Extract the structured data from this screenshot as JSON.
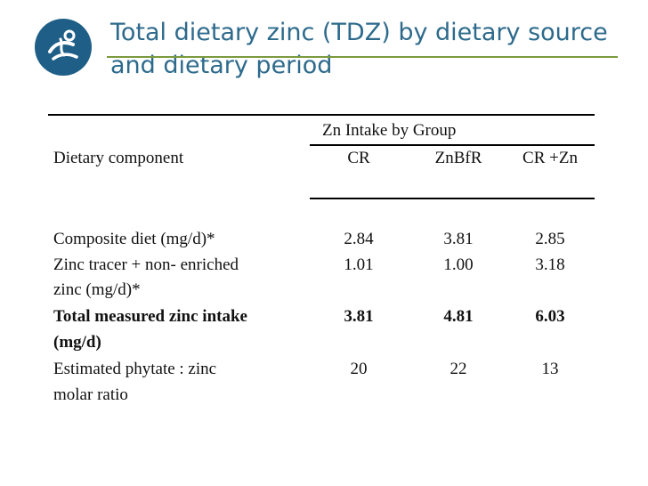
{
  "title": "Total dietary zinc (TDZ) by dietary source and dietary period",
  "logo": {
    "icon": "leaf-figure-logo-icon",
    "color": "#1f5f87"
  },
  "table": {
    "group_header": "Zn Intake by Group",
    "row_header": "Dietary component",
    "columns": [
      "CR",
      "ZnBfR",
      "CR +Zn"
    ],
    "rows": [
      {
        "label_lines": [
          "Composite diet (mg/d)*"
        ],
        "values": [
          "2.84",
          "3.81",
          "2.85"
        ],
        "bold": false
      },
      {
        "label_lines": [
          "Zinc tracer + non- enriched",
          "zinc (mg/d)*"
        ],
        "values": [
          "1.01",
          "1.00",
          "3.18"
        ],
        "bold": false
      },
      {
        "label_lines": [
          "Total measured zinc intake",
          "(mg/d)"
        ],
        "values": [
          "3.81",
          "4.81",
          "6.03"
        ],
        "bold": true
      },
      {
        "label_lines": [
          "Estimated phytate : zinc",
          "molar ratio"
        ],
        "values": [
          "20",
          "22",
          "13"
        ],
        "bold": false
      }
    ]
  }
}
